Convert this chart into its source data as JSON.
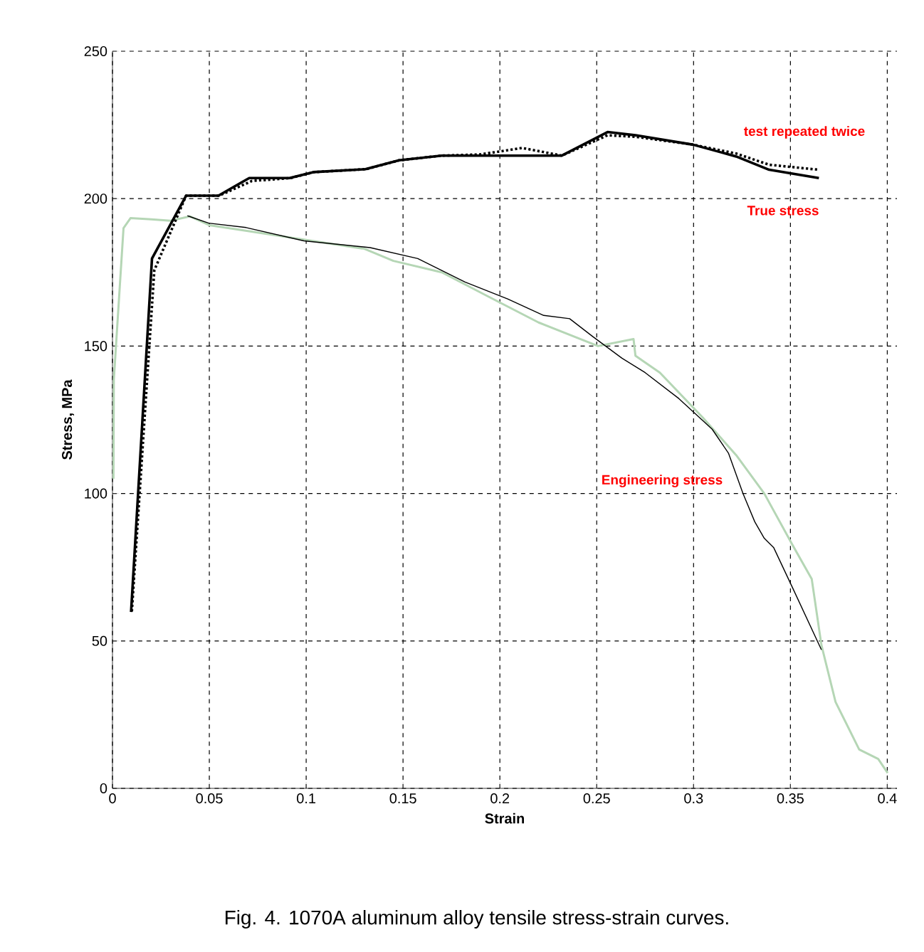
{
  "chart_data": {
    "type": "line",
    "xlabel": "Strain",
    "ylabel": "Stress, MPa",
    "xlim": [
      0,
      0.405
    ],
    "ylim": [
      0,
      250
    ],
    "xticks": [
      0,
      0.05,
      0.1,
      0.15,
      0.2,
      0.25,
      0.3,
      0.35,
      0.4
    ],
    "yticks": [
      0,
      50,
      100,
      150,
      200,
      250
    ],
    "grid": true,
    "series": [
      {
        "color": "#b5d6b5",
        "line_style": "solid",
        "x": [
          0.0005,
          0.0007,
          0.0057,
          0.0093,
          0.02,
          0.03,
          0.04,
          0.05,
          0.07,
          0.1,
          0.13,
          0.145,
          0.17,
          0.194,
          0.22,
          0.2507,
          0.269,
          0.27,
          0.2826,
          0.3047,
          0.322,
          0.3365,
          0.3512,
          0.361,
          0.366,
          0.3733,
          0.3855,
          0.3953,
          0.4002
        ],
        "values": [
          105,
          138.6,
          190,
          193.4,
          193,
          192.5,
          194,
          191,
          189,
          186,
          183,
          178.9,
          175,
          166.8,
          158,
          150,
          152.4,
          146.7,
          141,
          125.8,
          113,
          100,
          82.4,
          71,
          48.6,
          29.3,
          13.2,
          10,
          5.2
        ]
      },
      {
        "color": "#000000",
        "line_style": "solid",
        "x": [
          0.0387,
          0.0497,
          0.069,
          0.0988,
          0.133,
          0.1576,
          0.182,
          0.204,
          0.2226,
          0.236,
          0.248,
          0.263,
          0.275,
          0.2924,
          0.3096,
          0.318,
          0.3255,
          0.3316,
          0.3365,
          0.3414,
          0.3512,
          0.366
        ],
        "values": [
          194.2,
          191.7,
          190.2,
          185.7,
          183.4,
          179.7,
          171.7,
          166,
          160.4,
          159.3,
          153.2,
          145.9,
          141,
          132.2,
          121.8,
          113.7,
          100,
          90.4,
          84.8,
          81.6,
          67.9,
          47
        ]
      },
      {
        "color": "#000000",
        "line_style": "dotted",
        "x": [
          0.01,
          0.0216,
          0.038,
          0.055,
          0.072,
          0.092,
          0.104,
          0.131,
          0.148,
          0.17,
          0.19,
          0.2115,
          0.232,
          0.2556,
          0.27,
          0.2998,
          0.322,
          0.339,
          0.3647
        ],
        "values": [
          60,
          175.7,
          201,
          201,
          206,
          207,
          209,
          210,
          213,
          214.6,
          215,
          217.2,
          214.6,
          221.5,
          221,
          218.3,
          215.3,
          211.5,
          209.8
        ]
      },
      {
        "color": "#000000",
        "line_style": "solid",
        "x": [
          0.0096,
          0.0204,
          0.038,
          0.0547,
          0.0706,
          0.0914,
          0.1037,
          0.1306,
          0.148,
          0.17,
          0.2066,
          0.232,
          0.2556,
          0.27,
          0.2998,
          0.322,
          0.339,
          0.3647
        ],
        "values": [
          59.8,
          179.7,
          201,
          201,
          207,
          207,
          209,
          210,
          213,
          214.6,
          214.6,
          214.6,
          222.6,
          221.5,
          218.3,
          214.3,
          209.8,
          207
        ]
      }
    ],
    "annotations": [
      "test repeated twice",
      "True stress",
      "Engineering stress",
      "Fig. 4. 1070A aluminum alloy tensile stress-strain curves."
    ]
  }
}
